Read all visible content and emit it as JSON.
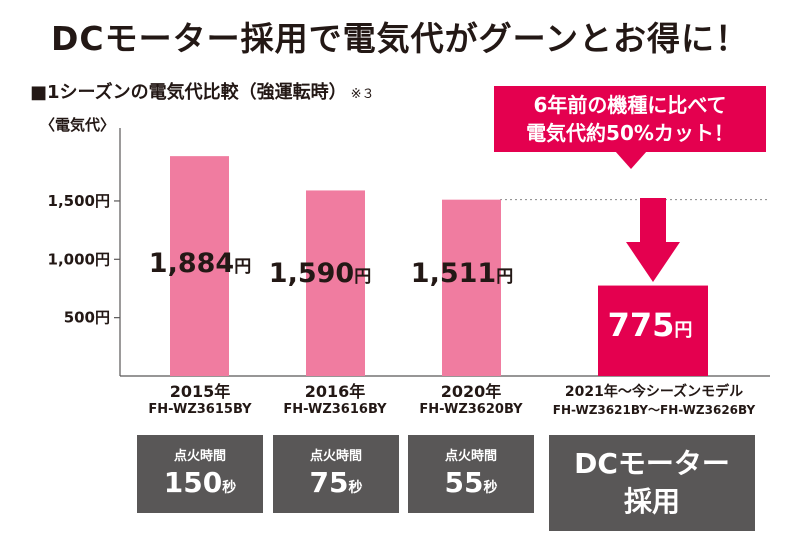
{
  "headline": "DCモーター採用で電気代がグーンとお得に！",
  "subtitle": "■1シーズンの電気代比較（強運転時）",
  "subtitle_note": "※３",
  "unit_label": "〈電気代〉",
  "callout": {
    "line1": "6年前の機種に比べて",
    "line2": "電気代約50%カット！"
  },
  "chart_data": {
    "type": "bar",
    "categories": [
      "2015年",
      "2016年",
      "2020年",
      "2021年〜今シーズンモデル"
    ],
    "models": [
      "FH-WZ3615BY",
      "FH-WZ3616BY",
      "FH-WZ3620BY",
      "FH-WZ3621BY〜FH-WZ3626BY"
    ],
    "values": [
      1884,
      1590,
      1511,
      775
    ],
    "value_labels": [
      "1,884",
      "1,590",
      "1,511",
      "775"
    ],
    "value_unit": "円",
    "yticks": [
      500,
      1000,
      1500
    ],
    "ytick_labels": [
      "500円",
      "1,000円",
      "1,500円"
    ],
    "ylim": [
      0,
      2050
    ],
    "colors": [
      "#f07ca0",
      "#f07ca0",
      "#f07ca0",
      "#e4004f"
    ],
    "reference_line": 1511
  },
  "ignition": [
    {
      "label": "点火時間",
      "value": "150",
      "unit": "秒"
    },
    {
      "label": "点火時間",
      "value": "75",
      "unit": "秒"
    },
    {
      "label": "点火時間",
      "value": "55",
      "unit": "秒"
    }
  ],
  "dc_box": {
    "line1": "DCモーター",
    "line2": "採用"
  }
}
